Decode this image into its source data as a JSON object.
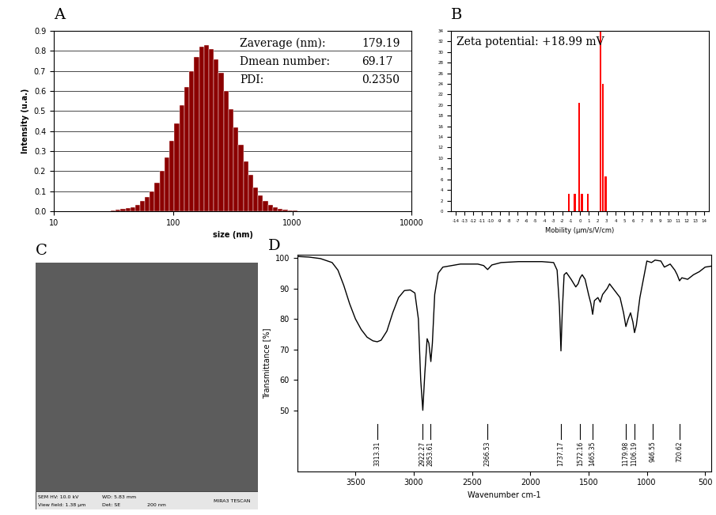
{
  "chart_data": [
    {
      "panel": "A",
      "type": "histogram",
      "x_label": "size (nm)",
      "y_label": "Intensity (u.a.)",
      "bins": [
        30,
        33,
        36,
        40,
        44,
        48,
        53,
        58,
        64,
        70,
        77,
        85,
        93,
        102,
        113,
        124,
        136,
        150,
        165,
        181,
        199,
        219,
        241,
        265,
        292,
        321,
        353,
        388,
        427,
        470,
        517,
        568,
        625,
        688,
        757,
        832,
        916,
        1007,
        1108
      ],
      "counts": [
        0.005,
        0.007,
        0.01,
        0.015,
        0.02,
        0.03,
        0.05,
        0.07,
        0.1,
        0.14,
        0.2,
        0.27,
        0.35,
        0.44,
        0.53,
        0.62,
        0.7,
        0.77,
        0.82,
        0.83,
        0.81,
        0.76,
        0.69,
        0.6,
        0.51,
        0.42,
        0.33,
        0.25,
        0.18,
        0.12,
        0.08,
        0.05,
        0.03,
        0.02,
        0.012,
        0.008,
        0.005,
        0.003
      ],
      "color": "#8b0000",
      "log": "x",
      "xlim": [
        10,
        10000
      ],
      "xticks": [
        10,
        100,
        1000,
        10000
      ],
      "ylim": [
        0,
        0.9
      ],
      "yticks": [
        {
          "value": 0,
          "label": "0.0"
        },
        0.1,
        0.2,
        0.3,
        0.4,
        0.5,
        0.6,
        0.7,
        0.8,
        0.9
      ],
      "grid": true,
      "table": [
        [
          "Zaverage (nm):",
          "179.19"
        ],
        [
          "Dmean number:",
          "69.17"
        ],
        [
          "PDI:",
          "0.2350"
        ]
      ]
    },
    {
      "panel": "B",
      "type": "bar",
      "x_label": "Mobility (µm/s/V/cm)",
      "x": [
        -1.25,
        -0.6,
        -0.1,
        0.2,
        0.9,
        2.3,
        2.6,
        2.9
      ],
      "values": [
        3.3,
        3.3,
        20.5,
        3.3,
        3.3,
        34,
        24,
        6.5
      ],
      "color": "#ff0000",
      "xlim": [
        -14.5,
        14.5
      ],
      "xticks": [
        -14,
        -13,
        -12,
        -11,
        -10,
        -9,
        -8,
        -7,
        -6,
        -5,
        -4,
        -3,
        -2,
        -1,
        0,
        1,
        2,
        3,
        4,
        5,
        6,
        7,
        8,
        9,
        10,
        11,
        12,
        13,
        14
      ],
      "ylim": [
        0,
        34
      ],
      "yticks": [
        0,
        2,
        4,
        6,
        8,
        10,
        12,
        14,
        16,
        18,
        20,
        22,
        24,
        26,
        28,
        30,
        32,
        34
      ],
      "annotations": [
        "Zeta potential: +18.99 mV"
      ]
    },
    {
      "panel": "C",
      "type": "image",
      "annotations": [
        "SEM HV: 10.0 kV",
        "WD: 5.83 mm",
        "MIRA3 TESCAN",
        "View field: 1.38 µm",
        "Det: SE",
        "200 nm"
      ]
    },
    {
      "panel": "D",
      "type": "line",
      "x_label": "Wavenumber cm-1",
      "y_label": "Transmittance [%]",
      "x": [
        4000,
        3900,
        3800,
        3700,
        3650,
        3600,
        3550,
        3500,
        3450,
        3400,
        3350,
        3313,
        3280,
        3230,
        3180,
        3130,
        3080,
        3030,
        2990,
        2960,
        2940,
        2922,
        2905,
        2885,
        2870,
        2853,
        2840,
        2820,
        2790,
        2750,
        2600,
        2450,
        2400,
        2366,
        2330,
        2250,
        2100,
        1900,
        1800,
        1770,
        1750,
        1737,
        1725,
        1710,
        1690,
        1650,
        1610,
        1590,
        1572,
        1555,
        1530,
        1500,
        1480,
        1465,
        1450,
        1420,
        1400,
        1380,
        1340,
        1320,
        1290,
        1250,
        1230,
        1200,
        1180,
        1160,
        1140,
        1120,
        1106,
        1090,
        1060,
        1020,
        1000,
        960,
        930,
        880,
        850,
        800,
        760,
        740,
        720,
        700,
        650,
        600,
        550,
        500,
        450
      ],
      "values": [
        100.5,
        100.3,
        99.8,
        98.5,
        96,
        91,
        85,
        80,
        76.5,
        74,
        72.8,
        72.5,
        73,
        76,
        82,
        87,
        89.3,
        89.5,
        88.5,
        80,
        60,
        50,
        62,
        73.5,
        72,
        66,
        72,
        88,
        95,
        97,
        98,
        98,
        97.5,
        96.2,
        97.7,
        98.5,
        98.8,
        98.8,
        98.5,
        96,
        84,
        69.5,
        83,
        94.5,
        95.2,
        93,
        90.5,
        91.5,
        93.5,
        94.5,
        93,
        88,
        85,
        81.5,
        86,
        87,
        85.5,
        88,
        90,
        91.5,
        90,
        88,
        87,
        82,
        77.5,
        80,
        82,
        79,
        75.5,
        78,
        87,
        95,
        99,
        98.5,
        99.3,
        99,
        97,
        98,
        96,
        94.5,
        92.5,
        93.5,
        93,
        94.5,
        95.5,
        97,
        97.3
      ],
      "color": "#000000",
      "xlim": [
        4000,
        450
      ],
      "xticks": [
        3500,
        3000,
        2500,
        2000,
        1500,
        1000,
        500
      ],
      "ylim": [
        30,
        101
      ],
      "yticks": [
        50,
        60,
        70,
        80,
        90,
        100
      ],
      "peaks": [
        3313.31,
        2922.27,
        2853.61,
        2366.53,
        1737.17,
        1572.16,
        1465.35,
        1179.98,
        1106.19,
        946.55,
        720.62
      ]
    }
  ]
}
